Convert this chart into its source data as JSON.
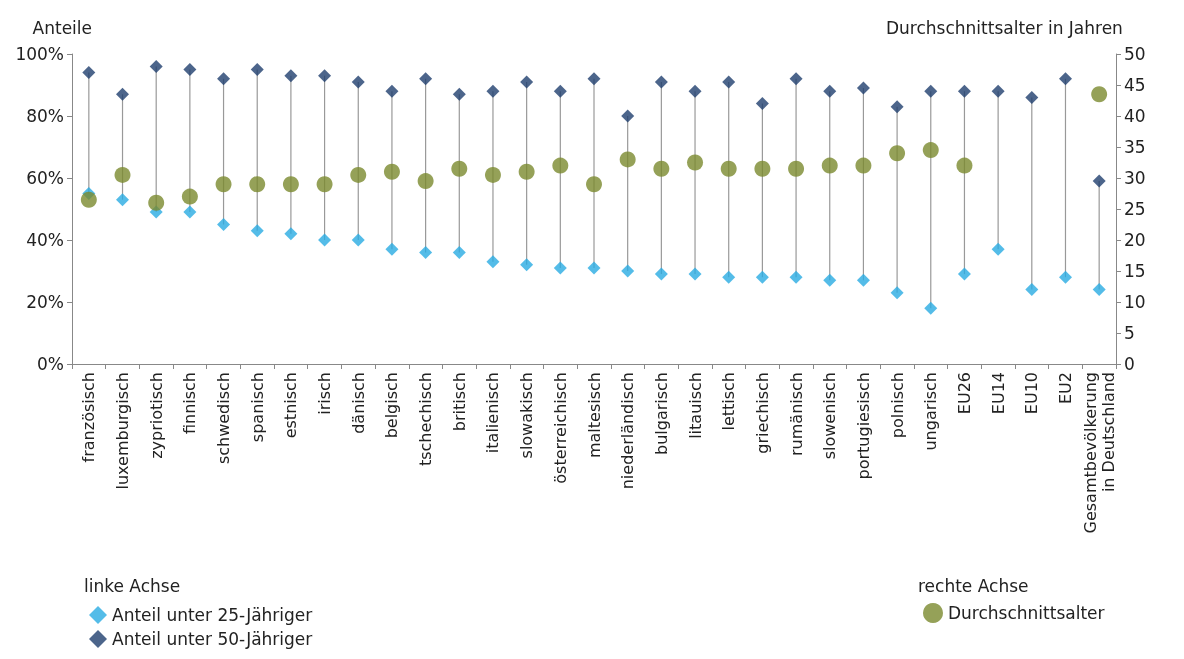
{
  "chart_data": {
    "type": "scatter",
    "ylabel": "Anteile",
    "y2label": "Durchschnittsalter in Jahren",
    "categories": [
      "französisch",
      "luxemburgisch",
      "zypriotisch",
      "finnisch",
      "schwedisch",
      "spanisch",
      "estnisch",
      "irisch",
      "dänisch",
      "belgisch",
      "tschechisch",
      "britisch",
      "italienisch",
      "slowakisch",
      "österreichisch",
      "maltesisch",
      "niederländisch",
      "bulgarisch",
      "litauisch",
      "lettisch",
      "griechisch",
      "rumänisch",
      "slowenisch",
      "portugiesisch",
      "polnisch",
      "ungarisch",
      "EU26",
      "EU14",
      "EU10",
      "EU2",
      "Gesamtbevölkerung in Deutschland"
    ],
    "series": [
      {
        "name": "Anteil unter 25-Jähriger",
        "color": "#29abe2",
        "marker": "diamond",
        "values": [
          55,
          53,
          49,
          49,
          45,
          43,
          42,
          40,
          40,
          37,
          36,
          36,
          33,
          32,
          31,
          31,
          30,
          29,
          29,
          28,
          28,
          28,
          27,
          27,
          23,
          18,
          29,
          37,
          24,
          28,
          24
        ]
      },
      {
        "name": "Anteil unter 50-Jähriger",
        "color": "#1f3f6e",
        "marker": "diamond",
        "values": [
          94,
          87,
          96,
          95,
          92,
          95,
          93,
          93,
          91,
          88,
          92,
          87,
          88,
          91,
          88,
          92,
          80,
          91,
          88,
          91,
          84,
          92,
          88,
          89,
          83,
          88,
          88,
          88,
          86,
          92,
          59
        ]
      },
      {
        "name": "Durchschnittsalter",
        "color": "#7a8a2e",
        "marker": "circle",
        "axis": "y2",
        "values": [
          26.5,
          30.5,
          26,
          27,
          29,
          29,
          29,
          29,
          30.5,
          31,
          29.5,
          31.5,
          30.5,
          31,
          32,
          29,
          33,
          31.5,
          32.5,
          31.5,
          31.5,
          31.5,
          32,
          32,
          34,
          34.5,
          32,
          null,
          null,
          null,
          43.5
        ]
      }
    ],
    "ylim": [
      0,
      100
    ],
    "yticks": [
      {
        "value": 0,
        "label": "0%"
      },
      {
        "value": 20,
        "label": "20%"
      },
      {
        "value": 40,
        "label": "40%"
      },
      {
        "value": 60,
        "label": "60%"
      },
      {
        "value": 80,
        "label": "80%"
      },
      {
        "value": 100,
        "label": "100%"
      }
    ],
    "y2lim": [
      0,
      50
    ],
    "y2ticks": [
      0,
      5,
      10,
      15,
      20,
      25,
      30,
      35,
      40,
      45,
      50
    ],
    "legend": "bottom",
    "annotations": [
      "linke Achse",
      "rechte Achse"
    ]
  }
}
